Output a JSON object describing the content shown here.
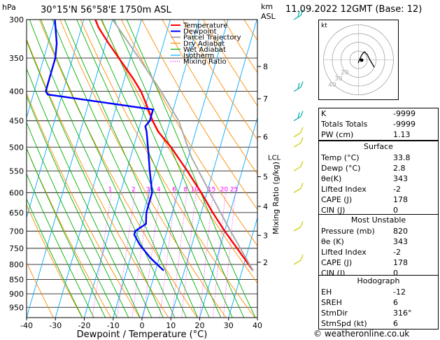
{
  "header": {
    "location": "30°15'N  56°58'E  1750m  ASL",
    "date": "11.09.2022  12GMT  (Base: 12)",
    "hpa_label": "hPa",
    "km_label": "km",
    "asl_label": "ASL"
  },
  "chart_data": {
    "type": "line",
    "xlabel": "Dewpoint / Temperature (°C)",
    "ylabel": "hPa",
    "right_ylabel": "Mixing Ratio (g/kg)",
    "xlim": [
      -40,
      40
    ],
    "ylim": [
      990,
      300
    ],
    "y_scale": "log",
    "x_ticks": [
      -40,
      -30,
      -20,
      -10,
      0,
      10,
      20,
      30,
      40
    ],
    "pressure_ticks": [
      300,
      350,
      400,
      450,
      500,
      550,
      600,
      650,
      700,
      750,
      800,
      850,
      900,
      950
    ],
    "km_ticks": [
      {
        "label": "8",
        "p": 362
      },
      {
        "label": "7",
        "p": 412
      },
      {
        "label": "6",
        "p": 480
      },
      {
        "label": "5",
        "p": 563
      },
      {
        "label": "4",
        "p": 634
      },
      {
        "label": "3",
        "p": 712
      },
      {
        "label": "2",
        "p": 793
      }
    ],
    "lcl": {
      "label": "LCL",
      "p": 520
    },
    "mixing_ratio_labels": [
      "1",
      "2",
      "3",
      "4",
      "6",
      "8",
      "10",
      "15",
      "20",
      "25"
    ],
    "mixing_ratio_values": [
      1,
      2,
      3,
      4,
      6,
      8,
      10,
      15,
      20,
      25
    ],
    "legend": [
      {
        "name": "Temperature",
        "color": "#ff0000"
      },
      {
        "name": "Dewpoint",
        "color": "#0000ff"
      },
      {
        "name": "Parcel Trajectory",
        "color": "#aaaaaa"
      },
      {
        "name": "Dry Adiabat",
        "color": "#ff8c00"
      },
      {
        "name": "Wet Adiabat",
        "color": "#00b000"
      },
      {
        "name": "Isotherm",
        "color": "#00aaff"
      },
      {
        "name": "Mixing Ratio",
        "color": "#ff00ff"
      }
    ],
    "legend_position": "top-left",
    "series": [
      {
        "name": "Temperature",
        "color": "#ff0000",
        "p": [
          820,
          750,
          700,
          650,
          600,
          550,
          500,
          470,
          450,
          420,
          400,
          380,
          350,
          330,
          310,
          300
        ],
        "t": [
          33.8,
          26,
          20,
          14,
          8,
          1,
          -7,
          -13,
          -16,
          -20,
          -23,
          -27,
          -34,
          -39,
          -44,
          -46
        ]
      },
      {
        "name": "Dewpoint",
        "color": "#0000ff",
        "p": [
          820,
          780,
          740,
          710,
          700,
          680,
          650,
          620,
          600,
          550,
          500,
          470,
          460,
          450,
          430,
          405,
          400,
          380,
          350,
          330,
          300
        ],
        "t": [
          2.8,
          -3,
          -8,
          -11,
          -11,
          -8,
          -9,
          -9,
          -9,
          -12,
          -15,
          -17,
          -18,
          -17,
          -17,
          -55,
          -56,
          -56,
          -56,
          -57,
          -60
        ]
      },
      {
        "name": "Parcel Trajectory",
        "color": "#aaaaaa",
        "p": [
          820,
          700,
          600,
          520,
          450,
          400,
          350,
          300
        ],
        "t": [
          33.8,
          22,
          11,
          1,
          -7,
          -16,
          -27,
          -40
        ]
      }
    ],
    "wind_barbs_p": [
      300,
      400,
      450,
      480,
      500,
      550,
      600,
      700,
      800
    ]
  },
  "hodograph": {
    "unit_label": "kt",
    "rings": [
      10,
      20,
      30,
      40
    ],
    "ring_labels": [
      "20",
      "30",
      "40"
    ]
  },
  "indices": [
    {
      "label": "K",
      "value": "-9999"
    },
    {
      "label": "Totals Totals",
      "value": "-9999"
    },
    {
      "label": "PW (cm)",
      "value": "1.13"
    }
  ],
  "surface": {
    "title": "Surface",
    "rows": [
      {
        "label": "Temp (°C)",
        "value": "33.8"
      },
      {
        "label": "Dewp (°C)",
        "value": "2.8"
      },
      {
        "label": "θe(K)",
        "value": "343"
      },
      {
        "label": "Lifted Index",
        "value": "-2"
      },
      {
        "label": "CAPE (J)",
        "value": "178"
      },
      {
        "label": "CIN (J)",
        "value": "0"
      }
    ]
  },
  "most_unstable": {
    "title": "Most Unstable",
    "rows": [
      {
        "label": "Pressure (mb)",
        "value": "820"
      },
      {
        "label": "θe (K)",
        "value": "343"
      },
      {
        "label": "Lifted Index",
        "value": "-2"
      },
      {
        "label": "CAPE (J)",
        "value": "178"
      },
      {
        "label": "CIN (J)",
        "value": "0"
      }
    ]
  },
  "hodograph_table": {
    "title": "Hodograph",
    "rows": [
      {
        "label": "EH",
        "value": "-12"
      },
      {
        "label": "SREH",
        "value": "6"
      },
      {
        "label": "StmDir",
        "value": "316°"
      },
      {
        "label": "StmSpd (kt)",
        "value": "6"
      }
    ]
  },
  "footer": {
    "copyright": "© weatheronline.co.uk"
  }
}
